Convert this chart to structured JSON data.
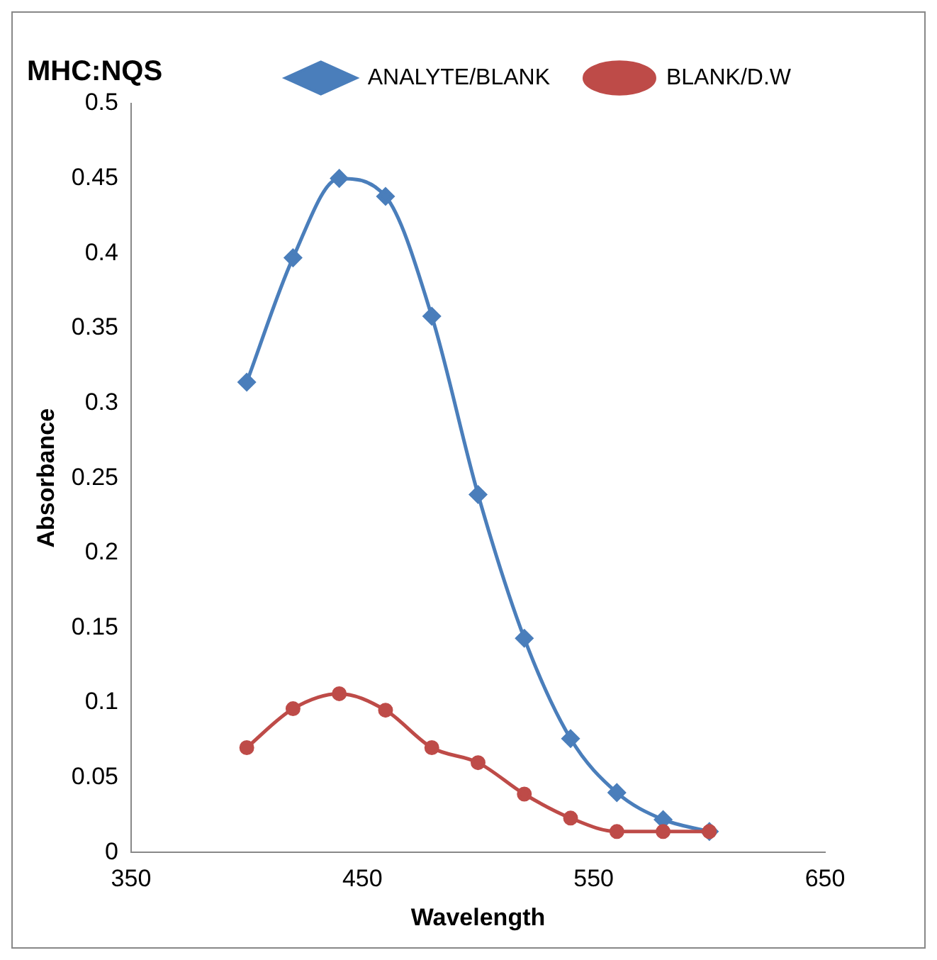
{
  "chart_data": {
    "type": "line",
    "title": "MHC:NQS",
    "xlabel": "Wavelength",
    "ylabel": "Absorbance",
    "x": [
      400,
      420,
      440,
      460,
      480,
      500,
      520,
      540,
      560,
      580,
      600
    ],
    "series": [
      {
        "name": "ANALYTE/BLANK",
        "color": "#4a7ebb",
        "marker": "diamond",
        "values": [
          0.314,
          0.397,
          0.45,
          0.438,
          0.358,
          0.239,
          0.143,
          0.076,
          0.04,
          0.022,
          0.014
        ]
      },
      {
        "name": "BLANK/D.W",
        "color": "#be4b48",
        "marker": "circle",
        "values": [
          0.07,
          0.096,
          0.106,
          0.095,
          0.07,
          0.06,
          0.039,
          0.023,
          0.014,
          0.014,
          0.014
        ]
      }
    ],
    "xlim": [
      350,
      650
    ],
    "xticks": [
      350,
      450,
      550,
      650
    ],
    "ylim": [
      0,
      0.5
    ],
    "yticks": [
      0,
      0.05,
      0.1,
      0.15,
      0.2,
      0.25,
      0.3,
      0.35,
      0.4,
      0.45,
      0.5
    ],
    "grid": false,
    "legend": "top right",
    "line_style": "solid"
  }
}
